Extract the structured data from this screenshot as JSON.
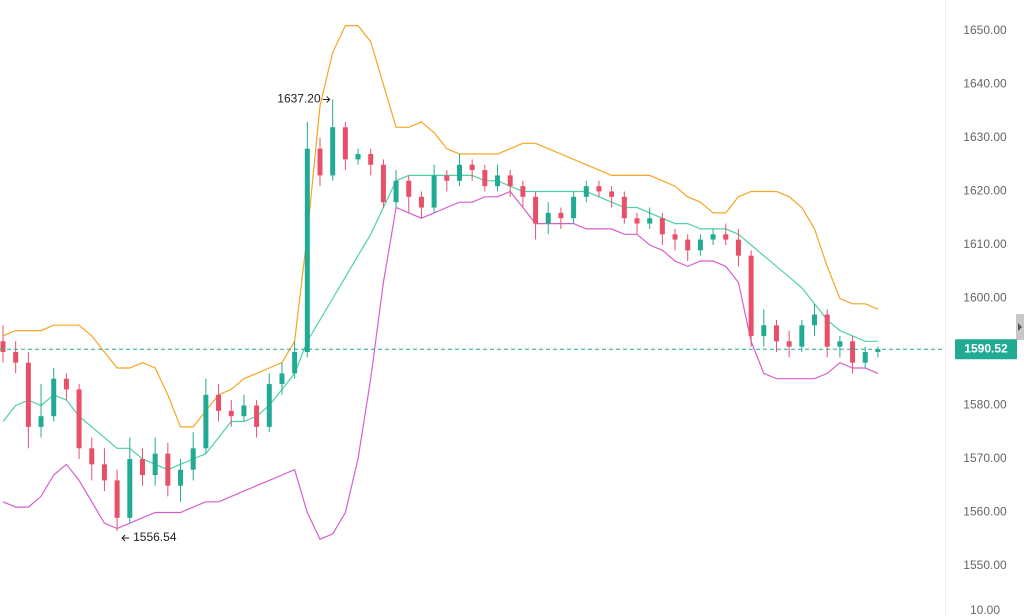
{
  "chart_data": {
    "type": "candlestick",
    "up_color": "#22ab94",
    "down_color": "#e8506a",
    "ylim": [
      1540.65,
      1655.79
    ],
    "yticks": [
      {
        "value": 1550,
        "label": "1550.00"
      },
      {
        "value": 1560,
        "label": "1560.00"
      },
      {
        "value": 1570,
        "label": "1570.00"
      },
      {
        "value": 1580,
        "label": "1580.00"
      },
      {
        "value": 1590,
        "label": "1590.00"
      },
      {
        "value": 1600,
        "label": "1600.00"
      },
      {
        "value": 1610,
        "label": "1610.00"
      },
      {
        "value": 1620,
        "label": "1620.00"
      },
      {
        "value": 1630,
        "label": "1630.00"
      },
      {
        "value": 1640,
        "label": "1640.00"
      },
      {
        "value": 1650,
        "label": "1650.00"
      }
    ],
    "open": [
      1592,
      1590,
      1588,
      1576,
      1578,
      1585,
      1583,
      1572,
      1569,
      1566,
      1559,
      1570,
      1567,
      1571,
      1565,
      1568,
      1572,
      1582,
      1579,
      1578,
      1580,
      1576,
      1584,
      1586,
      1590,
      1628,
      1623,
      1632,
      1626,
      1627,
      1625,
      1618,
      1622,
      1619,
      1617,
      1623,
      1622,
      1625,
      1624,
      1621,
      1623,
      1621,
      1619,
      1614,
      1616,
      1615,
      1619,
      1621,
      1620,
      1619,
      1615,
      1614,
      1615,
      1612,
      1611,
      1609,
      1611,
      1612,
      1611,
      1608,
      1593,
      1595,
      1592,
      1591,
      1595,
      1597,
      1591,
      1592,
      1588,
      1590
    ],
    "high": [
      1595,
      1592,
      1590,
      1584,
      1587,
      1586,
      1584,
      1574,
      1572,
      1568,
      1574,
      1572,
      1574,
      1573,
      1570,
      1575,
      1585,
      1584,
      1581,
      1582,
      1581,
      1586,
      1588,
      1592,
      1633,
      1630,
      1637.2,
      1633,
      1628,
      1628,
      1626,
      1624,
      1623,
      1620,
      1625,
      1624,
      1627,
      1626,
      1625,
      1625,
      1624,
      1622,
      1620,
      1618,
      1617,
      1620,
      1622,
      1622,
      1621,
      1620,
      1616,
      1617,
      1616,
      1613,
      1612,
      1612,
      1613,
      1614,
      1613,
      1609,
      1598,
      1596,
      1594,
      1596,
      1599,
      1598,
      1593,
      1593,
      1591,
      1591
    ],
    "low": [
      1588,
      1586,
      1572,
      1574,
      1577,
      1581,
      1570,
      1566,
      1564,
      1556.54,
      1558,
      1565,
      1565,
      1563,
      1562,
      1566,
      1571,
      1577,
      1576,
      1577,
      1574,
      1575,
      1582,
      1585,
      1589,
      1621,
      1622,
      1624,
      1625,
      1623,
      1617,
      1617,
      1616,
      1615,
      1616,
      1620,
      1621,
      1622,
      1620,
      1620,
      1619,
      1617,
      1611,
      1612,
      1613,
      1614,
      1618,
      1619,
      1617,
      1614,
      1612,
      1613,
      1610,
      1609,
      1607,
      1608,
      1610,
      1610,
      1606,
      1591,
      1591,
      1590,
      1589,
      1590,
      1593,
      1589,
      1589,
      1586,
      1587,
      1589
    ],
    "close": [
      1590,
      1588,
      1576,
      1578,
      1585,
      1583,
      1572,
      1569,
      1566,
      1559,
      1570,
      1567,
      1571,
      1565,
      1568,
      1572,
      1582,
      1579,
      1578,
      1580,
      1576,
      1584,
      1586,
      1590,
      1628,
      1623,
      1632,
      1626,
      1627,
      1625,
      1618,
      1622,
      1619,
      1617,
      1623,
      1622,
      1625,
      1624,
      1621,
      1623,
      1621,
      1619,
      1614,
      1616,
      1615,
      1619,
      1621,
      1620,
      1619,
      1615,
      1614,
      1615,
      1612,
      1611,
      1609,
      1611,
      1612,
      1611,
      1608,
      1593,
      1595,
      1592,
      1591,
      1595,
      1597,
      1591,
      1592,
      1588,
      1590,
      1590.52
    ],
    "bands": [
      {
        "color": "#f5a623",
        "values": [
          1593,
          1594,
          1594,
          1594,
          1595,
          1595,
          1595,
          1593,
          1590,
          1587,
          1587,
          1588,
          1587,
          1582,
          1576,
          1576,
          1579,
          1582,
          1583,
          1585,
          1586,
          1587,
          1588,
          1592,
          1612,
          1636,
          1646,
          1651,
          1651,
          1648,
          1640,
          1632,
          1632,
          1633,
          1631,
          1628,
          1627,
          1627,
          1627,
          1627,
          1628,
          1629,
          1629,
          1628,
          1627,
          1626,
          1625,
          1624,
          1623,
          1623,
          1623,
          1623,
          1622,
          1621,
          1619,
          1618,
          1616,
          1616,
          1619,
          1620,
          1620,
          1620,
          1619,
          1617,
          1613,
          1606,
          1600,
          1599,
          1599,
          1598
        ]
      },
      {
        "color": "#4fd1a5",
        "values": [
          1577,
          1580,
          1581,
          1580,
          1582,
          1581,
          1578,
          1576,
          1574,
          1572,
          1572,
          1570,
          1569,
          1568,
          1569,
          1570,
          1571,
          1574,
          1577,
          1577,
          1578,
          1580,
          1583,
          1586,
          1592,
          1596,
          1600,
          1604,
          1608,
          1612,
          1617,
          1622,
          1623,
          1623,
          1623,
          1623,
          1623,
          1623,
          1622,
          1622,
          1621,
          1620,
          1620,
          1620,
          1620,
          1620,
          1620,
          1619,
          1618,
          1617,
          1617,
          1616,
          1615,
          1614,
          1614,
          1613,
          1613,
          1613,
          1612,
          1610,
          1608,
          1606,
          1604,
          1602,
          1599,
          1596,
          1594,
          1593,
          1592,
          1592
        ]
      },
      {
        "color": "#d65fce",
        "values": [
          1562,
          1561,
          1561,
          1563,
          1567,
          1569,
          1566,
          1562,
          1558,
          1557,
          1558,
          1559,
          1560,
          1560,
          1560,
          1561,
          1562,
          1562,
          1563,
          1564,
          1565,
          1566,
          1567,
          1568,
          1560,
          1555,
          1556,
          1560,
          1570,
          1585,
          1603,
          1617,
          1616,
          1615,
          1616,
          1617,
          1618,
          1618,
          1619,
          1619,
          1620,
          1617,
          1614,
          1614,
          1614,
          1614,
          1613,
          1613,
          1613,
          1612,
          1612,
          1610,
          1609,
          1607,
          1606,
          1607,
          1607,
          1606,
          1603,
          1592,
          1586,
          1585,
          1585,
          1585,
          1585,
          1586,
          1588,
          1587,
          1587,
          1586
        ]
      }
    ],
    "last_price": 1590.52,
    "high_annotation": {
      "value": 1637.2,
      "label": "1637.20"
    },
    "low_annotation": 1556.54,
    "indicator_pane": {
      "yticks": [
        {
          "value": 10,
          "label": "10.00"
        }
      ]
    }
  }
}
